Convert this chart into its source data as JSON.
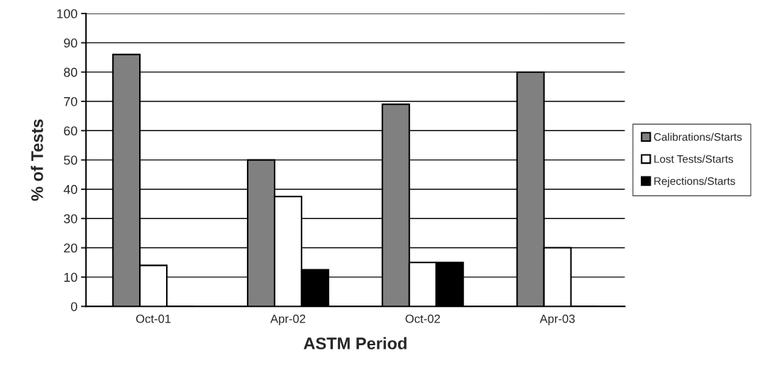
{
  "chart_data": {
    "type": "bar",
    "xlabel": "ASTM Period",
    "ylabel": "% of Tests",
    "categories": [
      "Oct-01",
      "Apr-02",
      "Oct-02",
      "Apr-03"
    ],
    "series": [
      {
        "name": "Calibrations/Starts",
        "color": "#808080",
        "values": [
          86,
          50,
          69,
          80
        ]
      },
      {
        "name": "Lost Tests/Starts",
        "color": "#ffffff",
        "values": [
          14,
          37.5,
          15,
          20
        ]
      },
      {
        "name": "Rejections/Starts",
        "color": "#000000",
        "values": [
          0,
          12.5,
          15,
          0
        ]
      }
    ],
    "ylim": [
      0,
      100
    ],
    "yticks": [
      0,
      10,
      20,
      30,
      40,
      50,
      60,
      70,
      80,
      90,
      100
    ],
    "grid": "y",
    "legend": "right"
  }
}
